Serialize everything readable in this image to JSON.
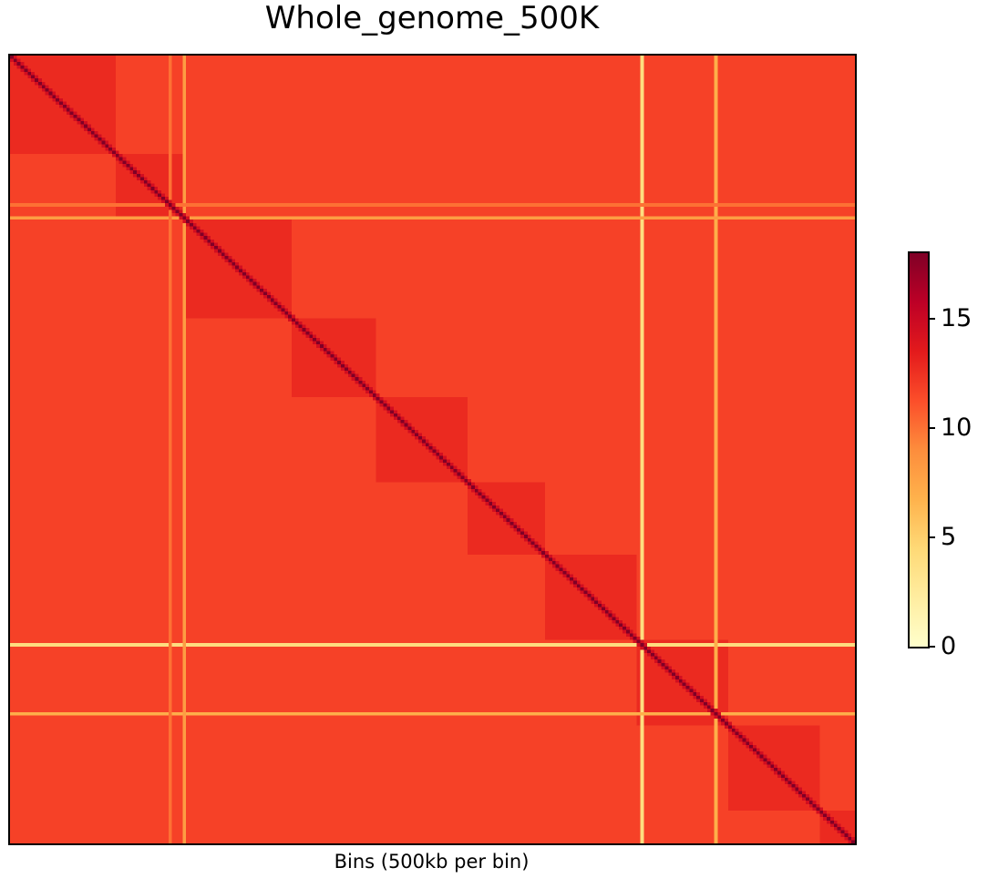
{
  "chart_data": {
    "type": "heatmap",
    "title": "Whole_genome_500K",
    "xlabel": "Bins (500kb per bin)",
    "ylabel": "",
    "colorbar": {
      "min": 0,
      "max": 18,
      "ticks": [
        0,
        5,
        10,
        15
      ],
      "tick_labels": [
        "0",
        "5",
        "10",
        "15"
      ],
      "colormap": [
        "#ffffcc",
        "#ffeda0",
        "#fed976",
        "#feb24c",
        "#fd8d3c",
        "#fc4e2a",
        "#e31a1c",
        "#bd0026",
        "#800026"
      ]
    },
    "matrix": {
      "n_bins": 240,
      "diagonal_value": 18,
      "near_diagonal_value": 14.5,
      "within_block_value": 12.8,
      "background_value": 11.8,
      "block_boundaries": [
        0,
        30,
        50,
        80,
        104,
        130,
        152,
        178,
        204,
        230,
        240
      ],
      "low_coverage_lines": [
        {
          "bin": 179,
          "value": 4
        },
        {
          "bin": 200,
          "value": 7
        },
        {
          "bin": 49,
          "value": 8
        },
        {
          "bin": 45,
          "value": 10
        }
      ]
    },
    "grid": false,
    "legend": "colorbar-right"
  }
}
